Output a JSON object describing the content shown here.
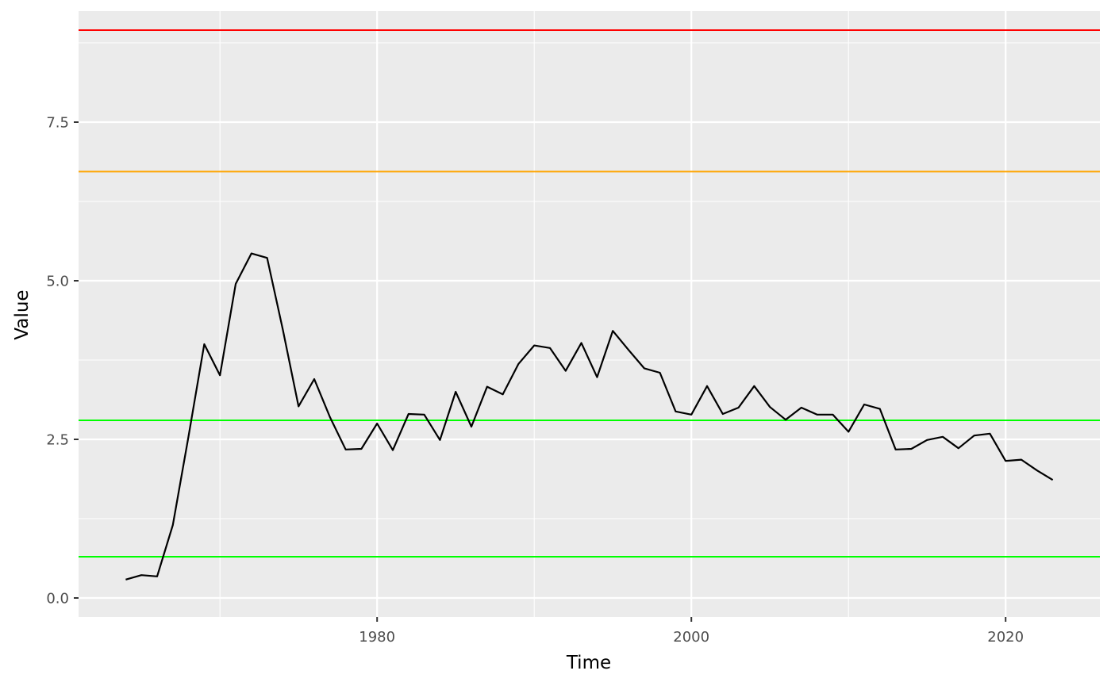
{
  "chart_data": {
    "type": "line",
    "title": "",
    "xlabel": "Time",
    "ylabel": "Value",
    "xlim": [
      1961,
      2026
    ],
    "ylim": [
      -0.3,
      9.25
    ],
    "x_ticks": [
      1980,
      2000,
      2020
    ],
    "x_tick_labels": [
      "1980",
      "2000",
      "2020"
    ],
    "x_minor_ticks": [
      1970,
      1990,
      2010
    ],
    "y_ticks": [
      0,
      2.5,
      5,
      7.5
    ],
    "y_tick_labels": [
      "0.0",
      "2.5",
      "5.0",
      "7.5"
    ],
    "y_minor_ticks": [
      1.25,
      3.75,
      6.25,
      8.75
    ],
    "grid": true,
    "panel_background": "#EBEBEB",
    "grid_color": "#FFFFFF",
    "series": [
      {
        "color": "#000000",
        "x": [
          1964,
          1965,
          1966,
          1967,
          1968,
          1969,
          1970,
          1971,
          1972,
          1973,
          1974,
          1975,
          1976,
          1977,
          1978,
          1979,
          1980,
          1981,
          1982,
          1983,
          1984,
          1985,
          1986,
          1987,
          1988,
          1989,
          1990,
          1991,
          1992,
          1993,
          1994,
          1995,
          1996,
          1997,
          1998,
          1999,
          2000,
          2001,
          2002,
          2003,
          2004,
          2005,
          2006,
          2007,
          2008,
          2009,
          2010,
          2011,
          2012,
          2013,
          2014,
          2015,
          2016,
          2017,
          2018,
          2019,
          2020,
          2021,
          2022,
          2023
        ],
        "y": [
          0.29,
          0.36,
          0.34,
          1.15,
          2.55,
          4.0,
          3.51,
          4.95,
          5.43,
          5.36,
          4.23,
          3.02,
          3.45,
          2.85,
          2.34,
          2.35,
          2.75,
          2.33,
          2.9,
          2.89,
          2.49,
          3.25,
          2.7,
          3.33,
          3.21,
          3.69,
          3.98,
          3.94,
          3.58,
          4.02,
          3.48,
          4.21,
          3.91,
          3.62,
          3.55,
          2.94,
          2.89,
          3.34,
          2.9,
          3.0,
          3.34,
          3.01,
          2.81,
          3.0,
          2.89,
          2.89,
          2.62,
          3.05,
          2.98,
          2.34,
          2.35,
          2.49,
          2.54,
          2.36,
          2.56,
          2.59,
          2.16,
          2.18,
          2.01,
          1.86
        ]
      }
    ],
    "reference_lines": [
      {
        "y": 8.95,
        "color": "#FF0000"
      },
      {
        "y": 6.72,
        "color": "#FFA500"
      },
      {
        "y": 2.8,
        "color": "#00FF00"
      },
      {
        "y": 0.65,
        "color": "#00FF00"
      }
    ]
  }
}
